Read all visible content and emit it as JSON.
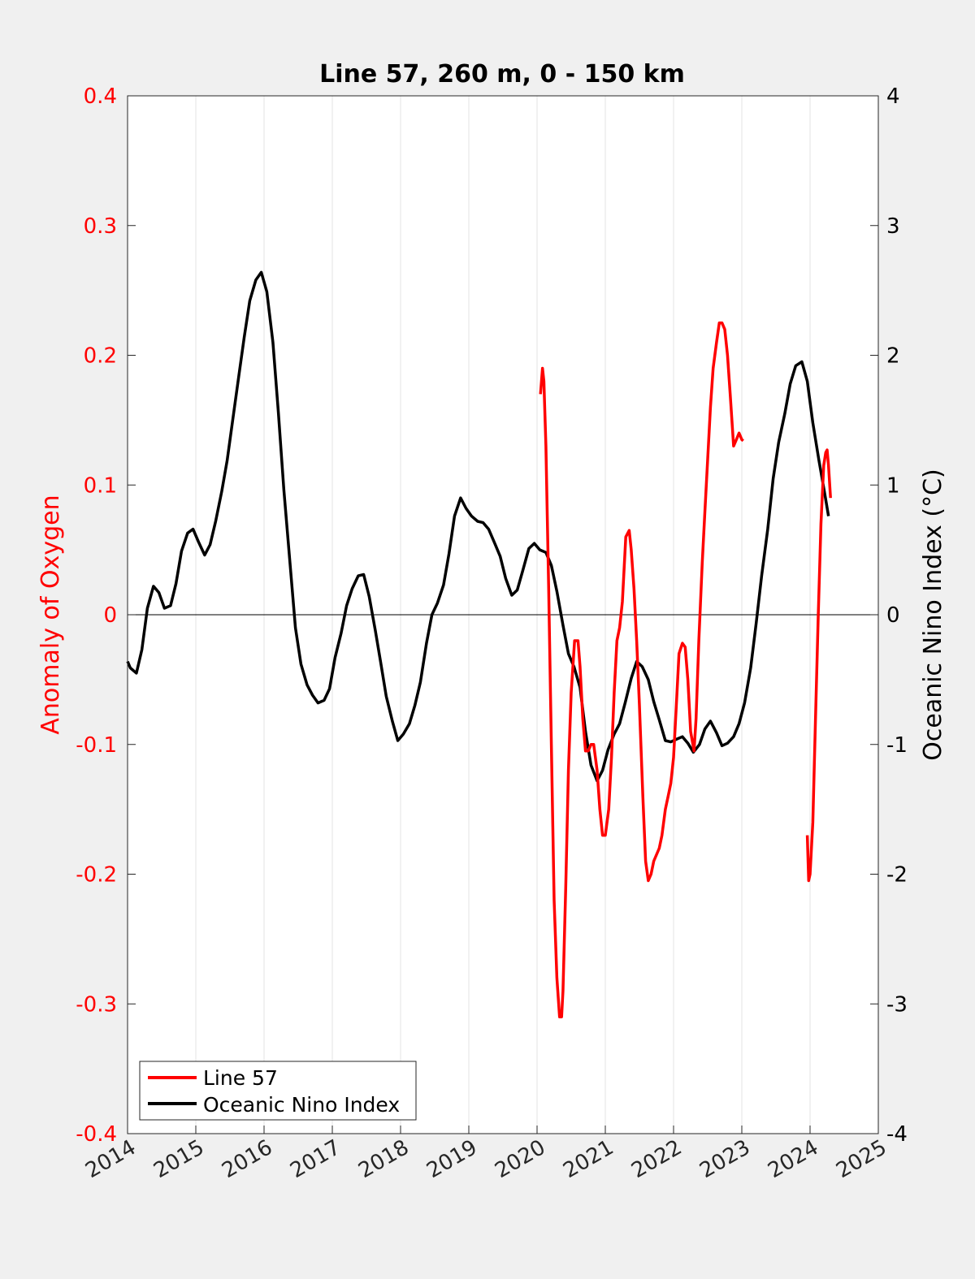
{
  "chart_data": {
    "type": "line",
    "title": "Line 57, 260 m, 0 - 150 km",
    "xlabel": "",
    "ylabel_left": "Anomaly of Oxygen",
    "ylabel_right": "Oceanic Nino Index (°C)",
    "xlim": [
      2014,
      2025
    ],
    "ylim_left": [
      -0.4,
      0.4
    ],
    "ylim_right": [
      -4,
      4
    ],
    "x_ticks": [
      2014,
      2015,
      2016,
      2017,
      2018,
      2019,
      2020,
      2021,
      2022,
      2023,
      2024,
      2025
    ],
    "x_tick_labels": [
      "2014",
      "2015",
      "2016",
      "2017",
      "2018",
      "2019",
      "2020",
      "2021",
      "2022",
      "2023",
      "2024",
      "2025"
    ],
    "y_left_ticks": [
      -0.4,
      -0.3,
      -0.2,
      -0.1,
      0,
      0.1,
      0.2,
      0.3,
      0.4
    ],
    "y_left_tick_labels": [
      "-0.4",
      "-0.3",
      "-0.2",
      "-0.1",
      "0",
      "0.1",
      "0.2",
      "0.3",
      "0.4"
    ],
    "y_right_ticks": [
      -4,
      -3,
      -2,
      -1,
      0,
      1,
      2,
      3,
      4
    ],
    "y_right_tick_labels": [
      "-4",
      "-3",
      "-2",
      "-1",
      "0",
      "1",
      "2",
      "3",
      "4"
    ],
    "grid": "vertical",
    "zero_line": true,
    "legend_position": "bottom-left",
    "colors": {
      "line57": "#ff0000",
      "oni": "#000000",
      "left_axis": "#ff0000",
      "right_axis": "#000000"
    },
    "series": [
      {
        "name": "Line 57",
        "axis": "left",
        "color": "#ff0000",
        "segments": [
          {
            "x": [
              2020.05,
              2020.08,
              2020.1,
              2020.13,
              2020.17,
              2020.21,
              2020.25,
              2020.29,
              2020.33,
              2020.36,
              2020.38,
              2020.42,
              2020.46,
              2020.5,
              2020.55,
              2020.6,
              2020.63,
              2020.67,
              2020.71,
              2020.75,
              2020.79,
              2020.83,
              2020.88,
              2020.92,
              2020.96,
              2021.0,
              2021.05,
              2021.09,
              2021.13,
              2021.17,
              2021.21,
              2021.25,
              2021.3,
              2021.35,
              2021.38,
              2021.42,
              2021.46,
              2021.5,
              2021.55,
              2021.59,
              2021.63,
              2021.67,
              2021.71,
              2021.75,
              2021.79,
              2021.83,
              2021.88,
              2021.92,
              2021.96,
              2022.0,
              2022.04,
              2022.08,
              2022.13,
              2022.17,
              2022.21,
              2022.25,
              2022.3,
              2022.33,
              2022.37,
              2022.42,
              2022.46,
              2022.5,
              2022.54,
              2022.58,
              2022.63,
              2022.67,
              2022.71,
              2022.75,
              2022.79,
              2022.83,
              2022.88,
              2022.92,
              2022.96,
              2023.0,
              2023.02
            ],
            "y": [
              0.17,
              0.19,
              0.18,
              0.13,
              0.02,
              -0.1,
              -0.22,
              -0.28,
              -0.31,
              -0.31,
              -0.29,
              -0.21,
              -0.12,
              -0.06,
              -0.02,
              -0.02,
              -0.04,
              -0.08,
              -0.105,
              -0.105,
              -0.1,
              -0.1,
              -0.12,
              -0.15,
              -0.17,
              -0.17,
              -0.15,
              -0.11,
              -0.06,
              -0.02,
              -0.01,
              0.01,
              0.06,
              0.065,
              0.05,
              0.02,
              -0.02,
              -0.07,
              -0.14,
              -0.19,
              -0.205,
              -0.2,
              -0.19,
              -0.185,
              -0.18,
              -0.17,
              -0.15,
              -0.14,
              -0.13,
              -0.11,
              -0.07,
              -0.03,
              -0.022,
              -0.025,
              -0.05,
              -0.09,
              -0.105,
              -0.08,
              -0.02,
              0.04,
              0.08,
              0.12,
              0.16,
              0.19,
              0.21,
              0.225,
              0.225,
              0.22,
              0.2,
              0.17,
              0.13,
              0.135,
              0.14,
              0.135,
              0.134
            ]
          },
          {
            "x": [
              2023.96,
              2023.98,
              2024.0,
              2024.04,
              2024.08,
              2024.12,
              2024.16,
              2024.2,
              2024.23,
              2024.25,
              2024.27,
              2024.3
            ],
            "y": [
              -0.17,
              -0.205,
              -0.2,
              -0.16,
              -0.08,
              0.0,
              0.07,
              0.115,
              0.125,
              0.127,
              0.115,
              0.09
            ]
          }
        ]
      },
      {
        "name": "Oceanic Nino Index",
        "axis": "right",
        "color": "#000000",
        "segments": [
          {
            "x": [
              2014.0,
              2014.04,
              2014.13,
              2014.21,
              2014.29,
              2014.38,
              2014.46,
              2014.54,
              2014.63,
              2014.71,
              2014.79,
              2014.88,
              2014.96,
              2015.04,
              2015.13,
              2015.21,
              2015.29,
              2015.38,
              2015.46,
              2015.54,
              2015.63,
              2015.71,
              2015.79,
              2015.88,
              2015.96,
              2016.04,
              2016.13,
              2016.21,
              2016.29,
              2016.38,
              2016.46,
              2016.54,
              2016.63,
              2016.71,
              2016.79,
              2016.88,
              2016.96,
              2017.04,
              2017.13,
              2017.21,
              2017.29,
              2017.38,
              2017.46,
              2017.54,
              2017.63,
              2017.71,
              2017.79,
              2017.88,
              2017.96,
              2018.04,
              2018.13,
              2018.21,
              2018.29,
              2018.38,
              2018.46,
              2018.54,
              2018.63,
              2018.71,
              2018.79,
              2018.88,
              2018.96,
              2019.04,
              2019.13,
              2019.21,
              2019.29,
              2019.38,
              2019.46,
              2019.54,
              2019.63,
              2019.71,
              2019.79,
              2019.88,
              2019.96,
              2020.04,
              2020.13,
              2020.21,
              2020.29,
              2020.38,
              2020.46,
              2020.54,
              2020.63,
              2020.71,
              2020.79,
              2020.88,
              2020.96,
              2021.04,
              2021.13,
              2021.21,
              2021.29,
              2021.38,
              2021.46,
              2021.54,
              2021.63,
              2021.71,
              2021.79,
              2021.88,
              2021.96,
              2022.04,
              2022.13,
              2022.21,
              2022.29,
              2022.38,
              2022.46,
              2022.54,
              2022.63,
              2022.71,
              2022.79,
              2022.88,
              2022.96,
              2023.04,
              2023.13,
              2023.21,
              2023.29,
              2023.38,
              2023.46,
              2023.54,
              2023.63,
              2023.71,
              2023.79,
              2023.88,
              2023.96,
              2024.04,
              2024.13,
              2024.21,
              2024.27
            ],
            "y": [
              -0.36,
              -0.41,
              -0.45,
              -0.27,
              0.05,
              0.22,
              0.17,
              0.05,
              0.07,
              0.24,
              0.49,
              0.63,
              0.66,
              0.56,
              0.46,
              0.54,
              0.72,
              0.95,
              1.19,
              1.5,
              1.84,
              2.14,
              2.42,
              2.58,
              2.64,
              2.49,
              2.1,
              1.56,
              0.96,
              0.4,
              -0.1,
              -0.38,
              -0.54,
              -0.62,
              -0.68,
              -0.66,
              -0.57,
              -0.33,
              -0.14,
              0.07,
              0.2,
              0.3,
              0.31,
              0.14,
              -0.12,
              -0.37,
              -0.63,
              -0.82,
              -0.97,
              -0.92,
              -0.84,
              -0.7,
              -0.52,
              -0.22,
              0.0,
              0.09,
              0.23,
              0.47,
              0.76,
              0.9,
              0.82,
              0.76,
              0.72,
              0.71,
              0.66,
              0.55,
              0.45,
              0.28,
              0.15,
              0.19,
              0.34,
              0.51,
              0.55,
              0.5,
              0.48,
              0.38,
              0.18,
              -0.08,
              -0.3,
              -0.4,
              -0.56,
              -0.9,
              -1.16,
              -1.28,
              -1.2,
              -1.04,
              -0.92,
              -0.84,
              -0.68,
              -0.49,
              -0.36,
              -0.4,
              -0.5,
              -0.67,
              -0.81,
              -0.97,
              -0.98,
              -0.96,
              -0.94,
              -0.99,
              -1.06,
              -1.0,
              -0.88,
              -0.82,
              -0.91,
              -1.01,
              -0.99,
              -0.94,
              -0.84,
              -0.68,
              -0.41,
              -0.07,
              0.3,
              0.66,
              1.05,
              1.33,
              1.55,
              1.78,
              1.92,
              1.95,
              1.8,
              1.48,
              1.19,
              0.95,
              0.76
            ]
          }
        ]
      }
    ]
  }
}
